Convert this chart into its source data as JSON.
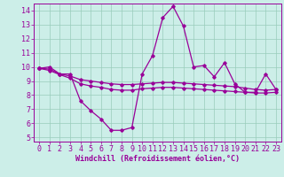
{
  "xlabel": "Windchill (Refroidissement éolien,°C)",
  "bg_color": "#cceee8",
  "line_color": "#990099",
  "xlim": [
    -0.5,
    23.5
  ],
  "ylim": [
    4.7,
    14.5
  ],
  "yticks": [
    5,
    6,
    7,
    8,
    9,
    10,
    11,
    12,
    13,
    14
  ],
  "xticks": [
    0,
    1,
    2,
    3,
    4,
    5,
    6,
    7,
    8,
    9,
    10,
    11,
    12,
    13,
    14,
    15,
    16,
    17,
    18,
    19,
    20,
    21,
    22,
    23
  ],
  "line1": [
    9.9,
    10.0,
    9.5,
    9.5,
    7.6,
    6.9,
    6.3,
    5.5,
    5.5,
    5.7,
    9.5,
    10.8,
    13.5,
    14.3,
    12.9,
    10.0,
    10.1,
    9.3,
    10.3,
    8.8,
    8.2,
    8.2,
    9.5,
    8.4
  ],
  "line2": [
    9.9,
    9.85,
    9.5,
    9.35,
    9.1,
    9.0,
    8.9,
    8.8,
    8.75,
    8.75,
    8.8,
    8.85,
    8.9,
    8.9,
    8.85,
    8.8,
    8.75,
    8.7,
    8.65,
    8.6,
    8.5,
    8.4,
    8.35,
    8.4
  ],
  "line3": [
    9.9,
    9.75,
    9.45,
    9.2,
    8.8,
    8.65,
    8.55,
    8.4,
    8.35,
    8.35,
    8.45,
    8.5,
    8.55,
    8.55,
    8.5,
    8.45,
    8.4,
    8.35,
    8.3,
    8.25,
    8.2,
    8.15,
    8.15,
    8.2
  ],
  "tick_fontsize": 6.0,
  "xlabel_fontsize": 6.0
}
